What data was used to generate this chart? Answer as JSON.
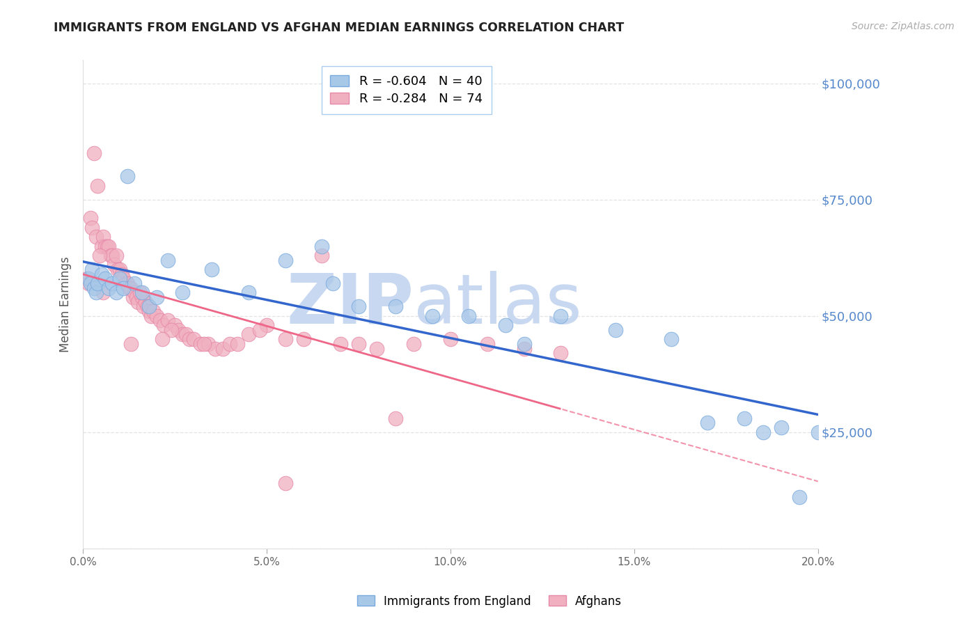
{
  "title": "IMMIGRANTS FROM ENGLAND VS AFGHAN MEDIAN EARNINGS CORRELATION CHART",
  "source": "Source: ZipAtlas.com",
  "ylabel": "Median Earnings",
  "xlim": [
    0.0,
    20.0
  ],
  "ylim": [
    0,
    105000
  ],
  "watermark_zip": "ZIP",
  "watermark_atlas": "atlas",
  "watermark_color": "#c8d8f0",
  "title_color": "#222222",
  "grid_color": "#dddddd",
  "england_color": "#a8c8e8",
  "afghan_color": "#f0b0c0",
  "england_edge": "#7aaadd",
  "afghan_edge": "#e888a8",
  "england_line_color": "#3366cc",
  "afghan_line_color": "#ee6688",
  "england_R": -0.604,
  "england_N": 40,
  "afghan_R": -0.284,
  "afghan_N": 74,
  "england_points_x": [
    0.15,
    0.2,
    0.25,
    0.3,
    0.35,
    0.4,
    0.5,
    0.6,
    0.7,
    0.8,
    0.9,
    1.0,
    1.1,
    1.2,
    1.4,
    1.6,
    1.8,
    2.0,
    2.3,
    2.7,
    3.5,
    4.5,
    5.5,
    6.5,
    6.8,
    7.5,
    8.5,
    9.5,
    10.5,
    11.5,
    12.0,
    13.0,
    14.5,
    16.0,
    17.0,
    18.0,
    18.5,
    19.0,
    19.5,
    20.0
  ],
  "england_points_y": [
    58000,
    57000,
    60000,
    56000,
    55000,
    57000,
    59000,
    58000,
    56000,
    57000,
    55000,
    58000,
    56000,
    80000,
    57000,
    55000,
    52000,
    54000,
    62000,
    55000,
    60000,
    55000,
    62000,
    65000,
    57000,
    52000,
    52000,
    50000,
    50000,
    48000,
    44000,
    50000,
    47000,
    45000,
    27000,
    28000,
    25000,
    26000,
    11000,
    25000
  ],
  "afghan_points_x": [
    0.1,
    0.15,
    0.2,
    0.25,
    0.3,
    0.35,
    0.4,
    0.5,
    0.55,
    0.6,
    0.65,
    0.7,
    0.75,
    0.8,
    0.85,
    0.9,
    0.95,
    1.0,
    1.05,
    1.1,
    1.15,
    1.2,
    1.25,
    1.3,
    1.35,
    1.4,
    1.45,
    1.5,
    1.6,
    1.65,
    1.7,
    1.75,
    1.8,
    1.85,
    1.9,
    2.0,
    2.1,
    2.2,
    2.3,
    2.5,
    2.6,
    2.7,
    2.8,
    2.9,
    3.0,
    3.2,
    3.4,
    3.6,
    3.8,
    4.0,
    4.2,
    4.5,
    5.0,
    5.5,
    6.0,
    6.5,
    7.0,
    7.5,
    8.0,
    9.0,
    10.0,
    11.0,
    12.0,
    13.0,
    4.8,
    3.3,
    2.4,
    1.55,
    0.45,
    0.55,
    2.15,
    1.3,
    8.5,
    5.5
  ],
  "afghan_points_y": [
    58000,
    57000,
    71000,
    69000,
    85000,
    67000,
    78000,
    65000,
    67000,
    65000,
    65000,
    65000,
    63000,
    63000,
    61000,
    63000,
    60000,
    60000,
    59000,
    58000,
    57000,
    57000,
    56000,
    56000,
    54000,
    55000,
    54000,
    53000,
    54000,
    52000,
    53000,
    52000,
    51000,
    50000,
    51000,
    50000,
    49000,
    48000,
    49000,
    48000,
    47000,
    46000,
    46000,
    45000,
    45000,
    44000,
    44000,
    43000,
    43000,
    44000,
    44000,
    46000,
    48000,
    45000,
    45000,
    63000,
    44000,
    44000,
    43000,
    44000,
    45000,
    44000,
    43000,
    42000,
    47000,
    44000,
    47000,
    55000,
    63000,
    55000,
    45000,
    44000,
    28000,
    14000
  ]
}
